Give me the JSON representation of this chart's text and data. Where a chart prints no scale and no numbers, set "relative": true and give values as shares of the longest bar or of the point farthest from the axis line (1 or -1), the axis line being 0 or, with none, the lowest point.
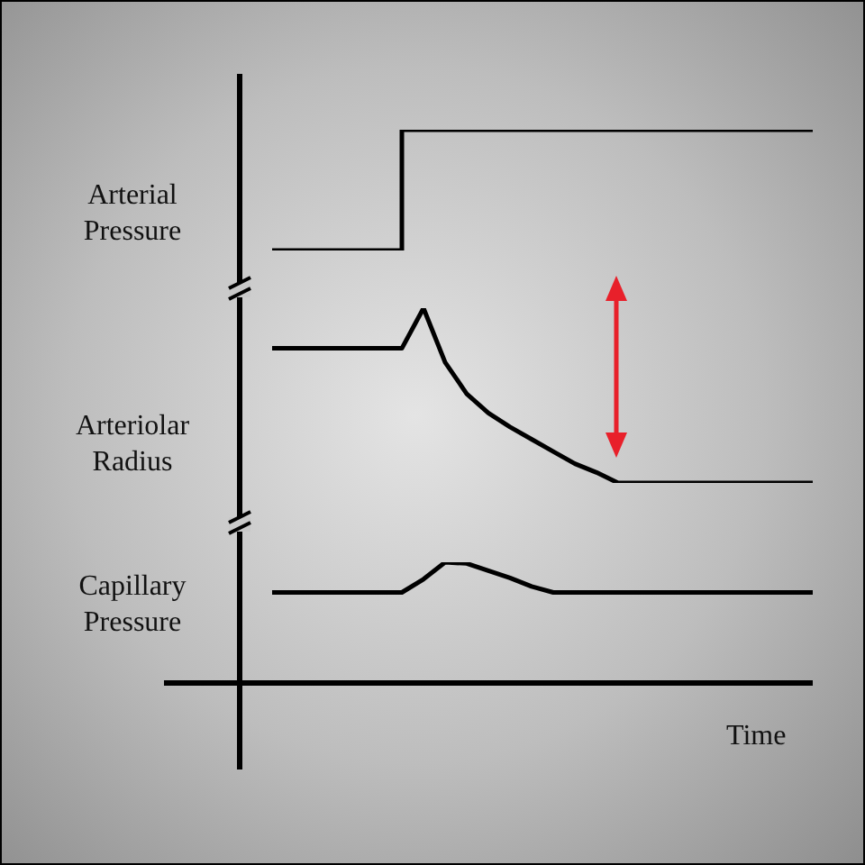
{
  "chart_data": [
    {
      "type": "step",
      "ylabel": "Arterial Pressure",
      "categories": [
        null,
        null,
        null,
        null,
        null,
        null,
        null,
        null,
        null,
        null,
        null,
        null,
        null,
        null,
        null,
        null,
        null,
        null,
        null,
        null,
        null,
        null,
        null,
        null,
        null,
        null
      ],
      "relative": true,
      "legend": false,
      "marker": "none",
      "series": [
        {
          "color": "#000000",
          "values": [
            0,
            0,
            0,
            0,
            0,
            0,
            1,
            1,
            1,
            1,
            1,
            1,
            1,
            1,
            1,
            1,
            1,
            1,
            1,
            1,
            1,
            1,
            1,
            1,
            1,
            1
          ]
        }
      ]
    },
    {
      "type": "line",
      "ylabel": "Arteriolar Radius",
      "categories": [
        null,
        null,
        null,
        null,
        null,
        null,
        null,
        null,
        null,
        null,
        null,
        null,
        null,
        null,
        null,
        null,
        null,
        null,
        null,
        null,
        null,
        null,
        null,
        null,
        null,
        null
      ],
      "relative": true,
      "legend": false,
      "marker": "none",
      "series": [
        {
          "color": "#000000",
          "values": [
            0.77,
            0.77,
            0.77,
            0.77,
            0.77,
            0.77,
            0.77,
            1,
            0.69,
            0.51,
            0.4,
            0.32,
            0.25,
            0.18,
            0.11,
            0.06,
            0,
            0,
            0,
            0,
            0,
            0,
            0,
            0,
            0,
            0
          ]
        }
      ]
    },
    {
      "type": "line",
      "ylabel": "Capillary Pressure",
      "xlabel": "Time",
      "categories": [
        null,
        null,
        null,
        null,
        null,
        null,
        null,
        null,
        null,
        null,
        null,
        null,
        null,
        null,
        null,
        null,
        null,
        null,
        null,
        null,
        null,
        null,
        null,
        null,
        null,
        null
      ],
      "relative": true,
      "legend": false,
      "marker": "none",
      "series": [
        {
          "color": "#000000",
          "values": [
            0.75,
            0.75,
            0.75,
            0.75,
            0.75,
            0.75,
            0.75,
            0.86,
            1,
            0.99,
            0.93,
            0.87,
            0.8,
            0.75,
            0.75,
            0.75,
            0.75,
            0.75,
            0.75,
            0.75,
            0.75,
            0.75,
            0.75,
            0.75,
            0.75,
            0.75
          ]
        }
      ]
    }
  ]
}
